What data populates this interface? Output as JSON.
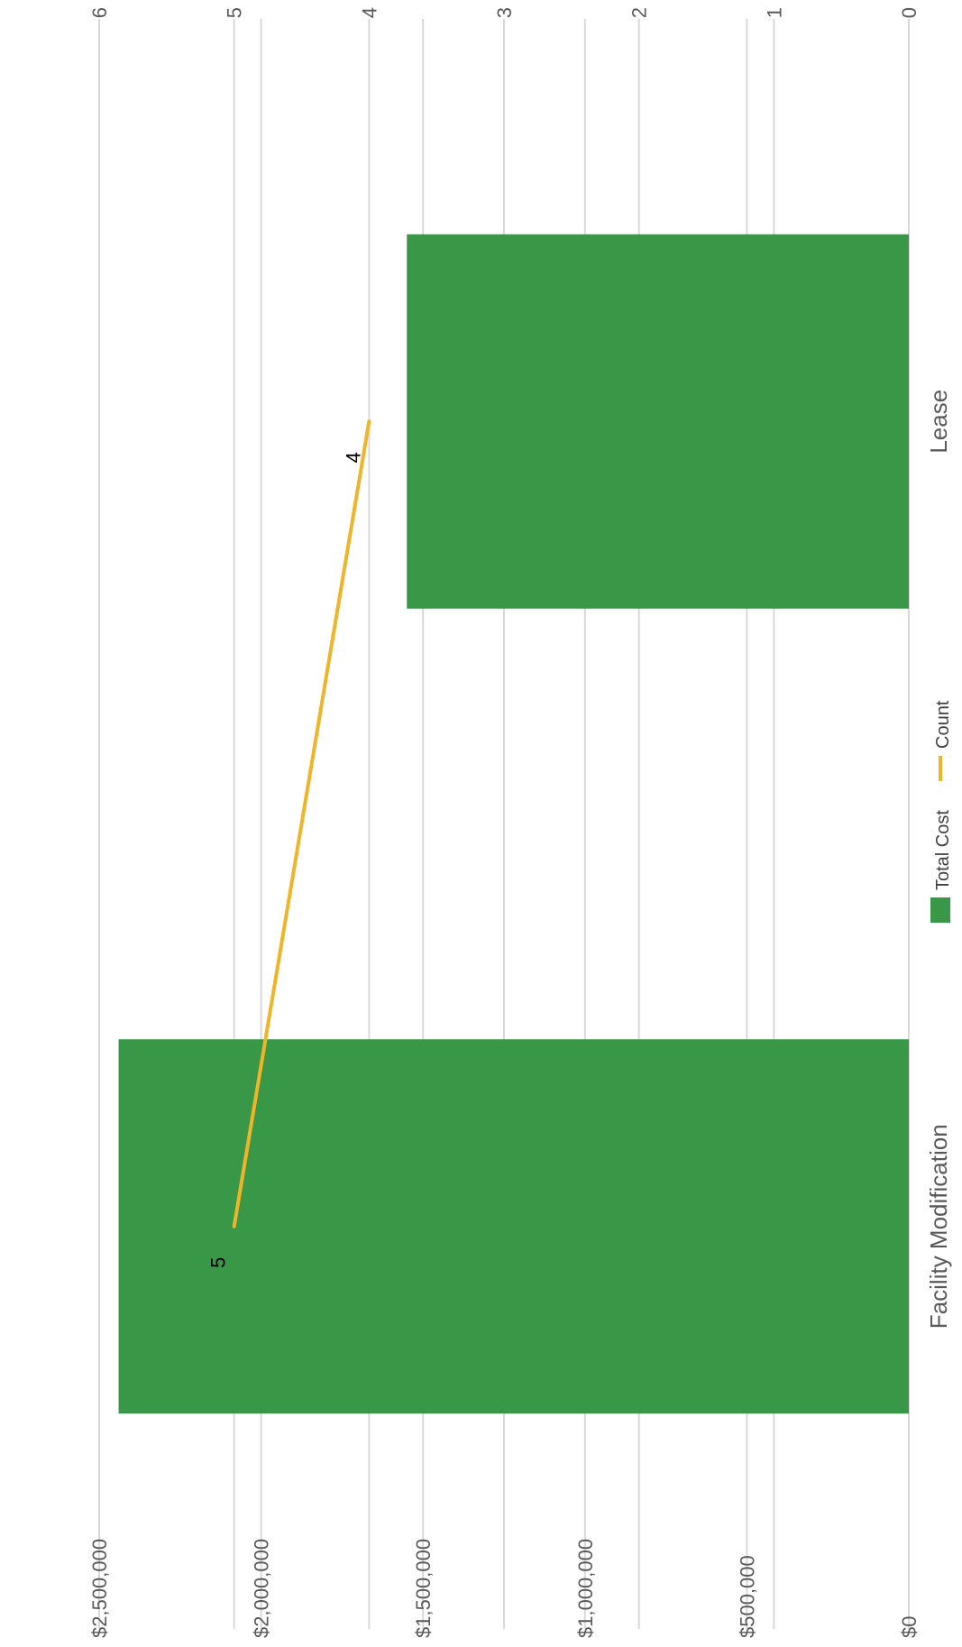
{
  "chart_data": {
    "type": "bar+line",
    "orientation": "rotated-90-clockwise",
    "categories": [
      "Facility Modification",
      "Lease"
    ],
    "series": [
      {
        "name": "Total Cost",
        "type": "bar",
        "axis": "primary",
        "color": "#389848",
        "values": [
          2440000,
          1550000
        ]
      },
      {
        "name": "Count",
        "type": "line",
        "axis": "secondary",
        "color": "#F0B429",
        "values": [
          5,
          4
        ]
      }
    ],
    "primary_axis": {
      "range": [
        0,
        2500000
      ],
      "ticks": [
        0,
        500000,
        1000000,
        1500000,
        2000000,
        2500000
      ],
      "tick_labels": [
        "$0",
        "$500,000",
        "$1,000,000",
        "$1,500,000",
        "$2,000,000",
        "$2,500,000"
      ]
    },
    "secondary_axis": {
      "range": [
        0,
        6
      ],
      "ticks": [
        0,
        1,
        2,
        3,
        4,
        5,
        6
      ],
      "tick_labels": [
        "0",
        "1",
        "2",
        "3",
        "4",
        "5",
        "6"
      ]
    },
    "data_labels": [
      "5",
      "4"
    ],
    "grid": true,
    "legend": {
      "position": "bottom",
      "entries": [
        "Total Cost",
        "Count"
      ]
    },
    "gridline_color": "#D9D9D9"
  }
}
